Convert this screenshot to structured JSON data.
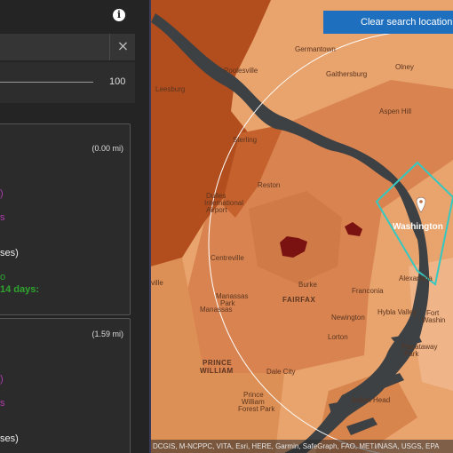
{
  "panel": {
    "info_icon": "i",
    "search": {
      "clear_icon": "×"
    },
    "slider": {
      "max_label": "100"
    },
    "cards": [
      {
        "distance": "(0.00 mi)",
        "fragments": {
          "pink1": ")",
          "pink2": "s",
          "white": "ses)",
          "green1": "o",
          "green2": "14 days:"
        }
      },
      {
        "distance": "(1.59 mi)",
        "fragments": {
          "pink1": ")",
          "pink2": "s",
          "white": "ses)"
        }
      }
    ]
  },
  "map": {
    "clear_search_label": "Clear search location",
    "attribution": "DCGIS, M-NCPPC, VITA, Esri, HERE, Garmin, SafeGraph, FAO, METI/NASA, USGS, EPA",
    "places": {
      "germantown": "Germantown",
      "poolesville": "Poolesville",
      "gaithersburg": "Gaithersburg",
      "olney": "Olney",
      "leesburg": "Leesburg",
      "aspen_hill": "Aspen Hill",
      "sterling": "Sterling",
      "reston": "Reston",
      "dulles1": "Dulles",
      "dulles2": "International",
      "dulles3": "Airport",
      "washington": "Washington",
      "centreville": "Centreville",
      "burke": "Burke",
      "fairfax": "FAIRFAX",
      "franconia": "Franconia",
      "alexandria": "Alexandria",
      "manassas": "Manassas",
      "manassas_park1": "Manassas",
      "manassas_park2": "Park",
      "hybla_valley": "Hybla Valley",
      "newington": "Newington",
      "fort_washington1": "Fort",
      "fort_washington2": "Washin",
      "lorton": "Lorton",
      "prince1": "PRINCE",
      "prince2": "WILLIAM",
      "dale_city": "Dale City",
      "piscataway1": "Piscataway",
      "piscataway2": "Park",
      "prince_forest1": "Prince",
      "prince_forest2": "William",
      "prince_forest3": "Forest Park",
      "indian_head": "Indian Head",
      "ville_edge": "ville"
    },
    "colors": {
      "light_region": "#e9a36d",
      "mid_region": "#d98450",
      "dark_region": "#b24e1e",
      "hotspot": "#7a1212",
      "river": "#3e4144",
      "dc_boundary": "#34c8c2",
      "search_radius": "#ffffff",
      "button_blue": "#1f6fbf"
    }
  }
}
